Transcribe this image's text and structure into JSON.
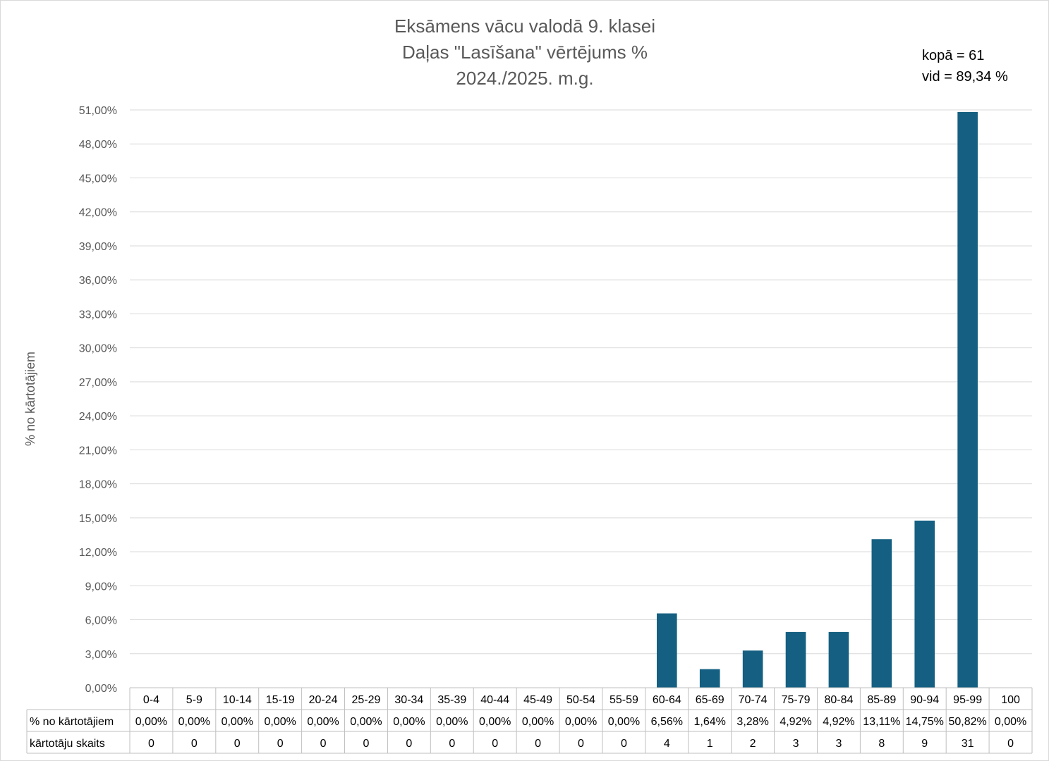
{
  "chart_data": {
    "type": "bar",
    "title": [
      "Eksāmens vācu valodā 9. klasei",
      "Daļas \"Lasīšana\" vērtējums %",
      "2024./2025. m.g."
    ],
    "annotations": [
      "kopā = 61",
      "vid = 89,34 %"
    ],
    "ylabel": "% no kārtotājiem",
    "xlabel": "",
    "ylim": [
      0,
      51
    ],
    "y_ticks": [
      "0,00%",
      "3,00%",
      "6,00%",
      "9,00%",
      "12,00%",
      "15,00%",
      "18,00%",
      "21,00%",
      "24,00%",
      "27,00%",
      "30,00%",
      "33,00%",
      "36,00%",
      "39,00%",
      "42,00%",
      "45,00%",
      "48,00%",
      "51,00%"
    ],
    "grid": true,
    "bar_color": "#156082",
    "categories": [
      "0-4",
      "5-9",
      "10-14",
      "15-19",
      "20-24",
      "25-29",
      "30-34",
      "35-39",
      "40-44",
      "45-49",
      "50-54",
      "55-59",
      "60-64",
      "65-69",
      "70-74",
      "75-79",
      "80-84",
      "85-89",
      "90-94",
      "95-99",
      "100"
    ],
    "series": [
      {
        "name": "% no kārtotājiem",
        "values": [
          0,
          0,
          0,
          0,
          0,
          0,
          0,
          0,
          0,
          0,
          0,
          0,
          6.56,
          1.64,
          3.28,
          4.92,
          4.92,
          13.11,
          14.75,
          50.82,
          0
        ],
        "labels": [
          "0,00%",
          "0,00%",
          "0,00%",
          "0,00%",
          "0,00%",
          "0,00%",
          "0,00%",
          "0,00%",
          "0,00%",
          "0,00%",
          "0,00%",
          "0,00%",
          "6,56%",
          "1,64%",
          "3,28%",
          "4,92%",
          "4,92%",
          "13,11%",
          "14,75%",
          "50,82%",
          "0,00%"
        ]
      },
      {
        "name": "kārtotāju skaits",
        "values": [
          0,
          0,
          0,
          0,
          0,
          0,
          0,
          0,
          0,
          0,
          0,
          0,
          4,
          1,
          2,
          3,
          3,
          8,
          9,
          31,
          0
        ]
      }
    ]
  }
}
